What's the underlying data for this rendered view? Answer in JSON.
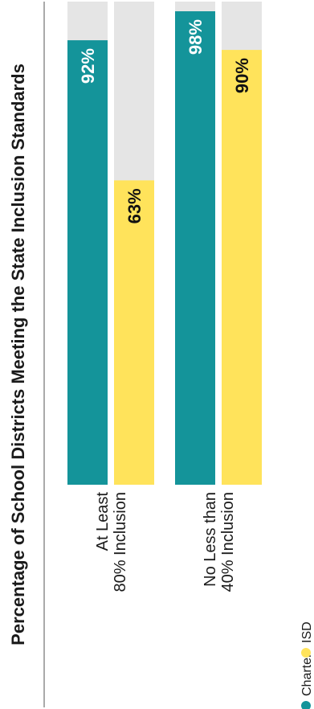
{
  "chart_data": {
    "type": "bar",
    "orientation": "vertical-rotated",
    "title": "Percentage of School Districts Meeting the State Inclusion Standards",
    "categories": [
      {
        "line1": "At Least",
        "line2": "80% Inclusion"
      },
      {
        "line1": "No Less than",
        "line2": "40% Inclusion"
      }
    ],
    "series": [
      {
        "name": "Charter",
        "color": "#14949A",
        "label_color": "#ffffff",
        "values": [
          92,
          98
        ]
      },
      {
        "name": "ISD",
        "color": "#FFE35B",
        "label_color": "#111111",
        "values": [
          63,
          90
        ]
      }
    ],
    "ylim": [
      0,
      100
    ],
    "value_suffix": "%",
    "track_color": "#E5E5E5",
    "legend_position": "bottom"
  }
}
